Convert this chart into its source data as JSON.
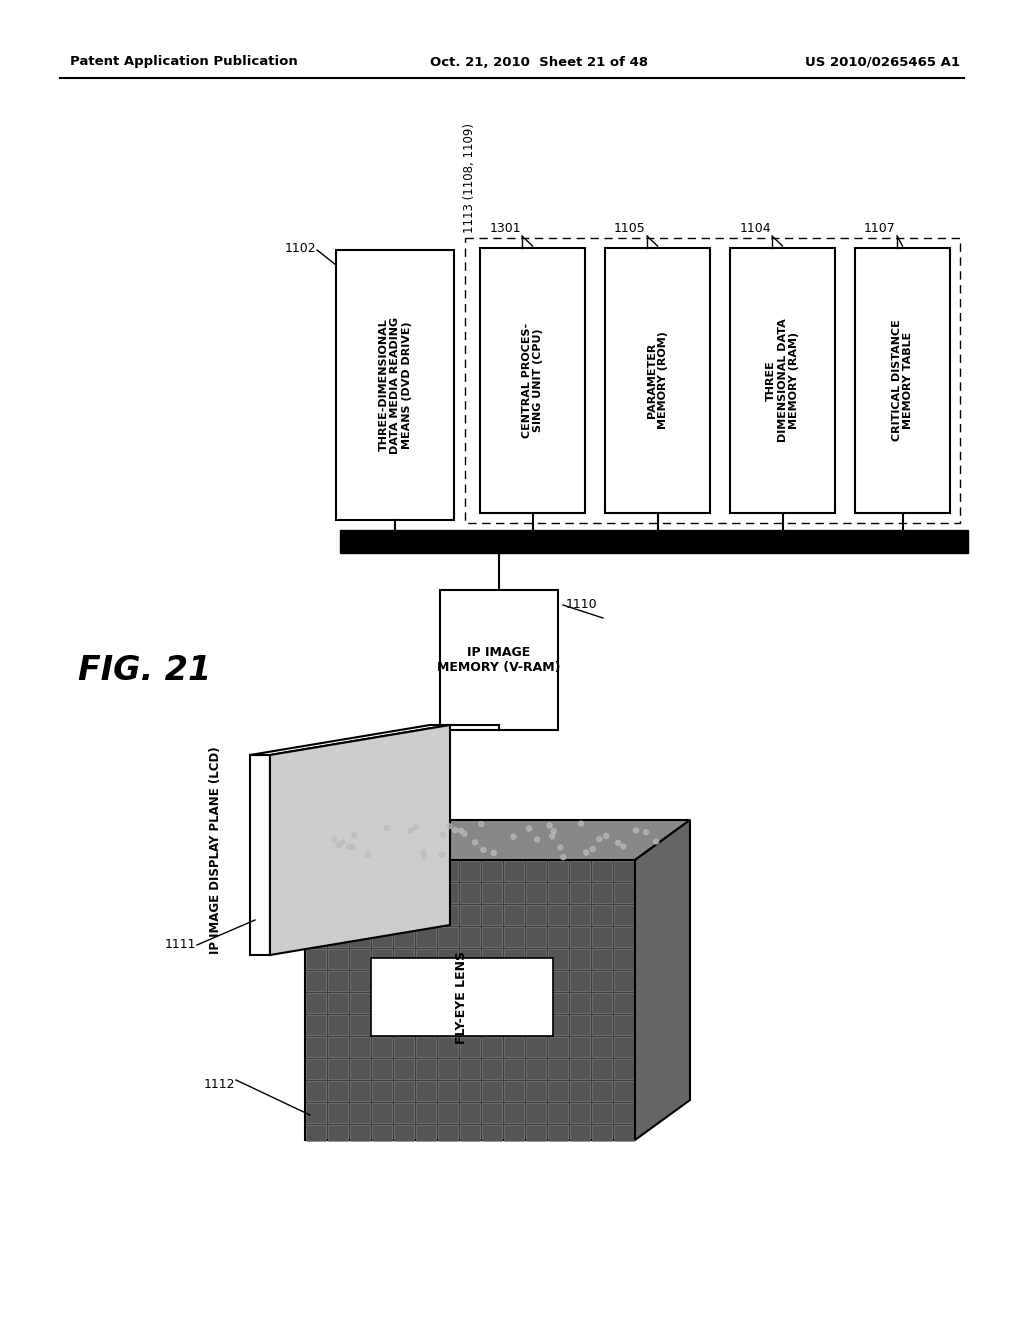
{
  "bg_color": "#ffffff",
  "header_left": "Patent Application Publication",
  "header_mid": "Oct. 21, 2010  Sheet 21 of 48",
  "header_right": "US 2010/0265465 A1",
  "fig_label": "FIG. 21",
  "boxes": {
    "dvd": {
      "label": "THREE-DIMENSIONAL\nDATA MEDIA READING\nMEANS (DVD DRIVE)",
      "id": "1102"
    },
    "cpu": {
      "label": "CENTRAL PROCES-\nSING UNIT (CPU)",
      "id": "1301"
    },
    "rom": {
      "label": "PARAMETER\nMEMORY (ROM)",
      "id": "1105"
    },
    "ram": {
      "label": "THREE\nDIMENSIONAL DATA\nMEMORY (RAM)",
      "id": "1104"
    },
    "table": {
      "label": "CRITICAL DISTANCE\nMEMORY TABLE",
      "id": "1107"
    },
    "vram": {
      "label": "IP IMAGE\nMEMORY (V-RAM)",
      "id": "1110"
    },
    "bus_group_label": "1113 (1108, 1109)"
  },
  "labels": {
    "ip_display": "IP IMAGE DISPLAY PLANE (LCD)",
    "fly_eye": "FLY-EYE LENS"
  }
}
